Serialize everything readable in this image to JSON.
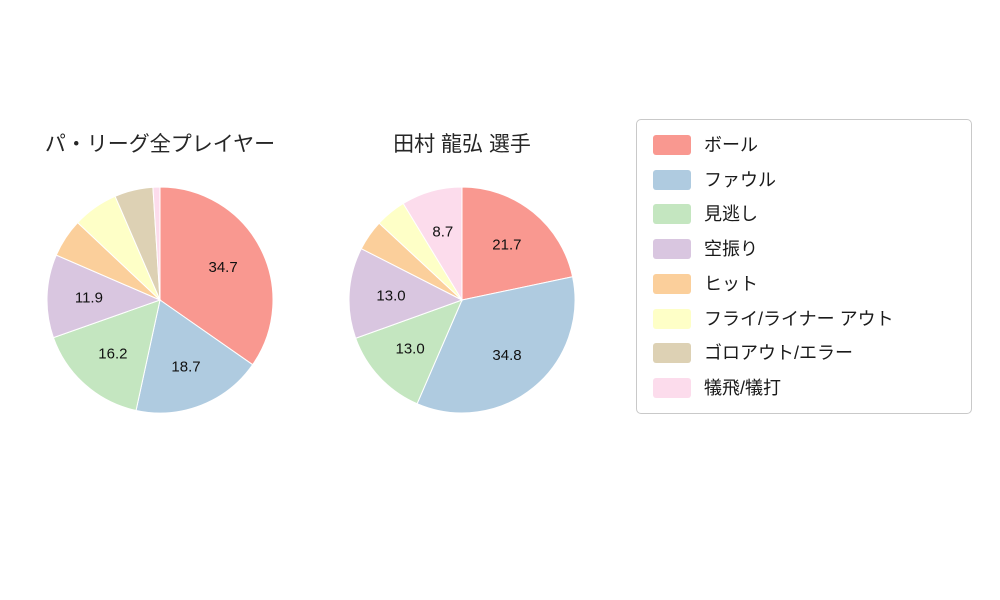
{
  "figure": {
    "background": "#ffffff"
  },
  "palette": [
    "#f99890",
    "#afcbe0",
    "#c4e6c0",
    "#d9c6e0",
    "#fbcf9b",
    "#feffc7",
    "#ddd1b4",
    "#fcdcec"
  ],
  "chart_data": [
    {
      "type": "pie",
      "title": "パ・リーグ全プレイヤー",
      "labels": [
        "ボール",
        "ファウル",
        "見逃し",
        "空振り",
        "ヒット",
        "フライ/ライナー アウト",
        "ゴロアウト/エラー",
        "犠飛/犠打"
      ],
      "values": [
        34.7,
        18.7,
        16.2,
        11.9,
        5.5,
        6.5,
        5.5,
        1.0
      ],
      "value_labels": [
        "34.7",
        "18.7",
        "16.2",
        "11.9",
        "",
        "",
        "",
        ""
      ],
      "start_angle": "top",
      "direction": "clockwise",
      "legend_position": "right"
    },
    {
      "type": "pie",
      "title": "田村 龍弘 選手",
      "labels": [
        "ボール",
        "ファウル",
        "見逃し",
        "空振り",
        "ヒット",
        "フライ/ライナー アウト",
        "ゴロアウト/エラー",
        "犠飛/犠打"
      ],
      "values": [
        21.7,
        34.8,
        13.0,
        13.0,
        4.4,
        4.4,
        0,
        8.7
      ],
      "value_labels": [
        "21.7",
        "34.8",
        "13.0",
        "13.0",
        "",
        "",
        "",
        "8.7"
      ],
      "start_angle": "top",
      "direction": "clockwise",
      "legend_position": "right"
    }
  ],
  "legend": {
    "items": [
      {
        "label": "ボール",
        "color": "#f99890"
      },
      {
        "label": "ファウル",
        "color": "#afcbe0"
      },
      {
        "label": "見逃し",
        "color": "#c4e6c0"
      },
      {
        "label": "空振り",
        "color": "#d9c6e0"
      },
      {
        "label": "ヒット",
        "color": "#fbcf9b"
      },
      {
        "label": "フライ/ライナー アウト",
        "color": "#feffc7"
      },
      {
        "label": "ゴロアウト/エラー",
        "color": "#ddd1b4"
      },
      {
        "label": "犠飛/犠打",
        "color": "#fcdcec"
      }
    ]
  }
}
